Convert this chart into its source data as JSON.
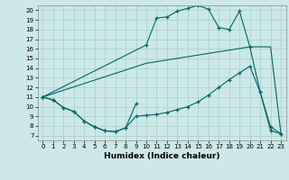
{
  "xlabel": "Humidex (Indice chaleur)",
  "xlim": [
    -0.5,
    23.5
  ],
  "ylim": [
    6.5,
    20.5
  ],
  "xticks": [
    0,
    1,
    2,
    3,
    4,
    5,
    6,
    7,
    8,
    9,
    10,
    11,
    12,
    13,
    14,
    15,
    16,
    17,
    18,
    19,
    20,
    21,
    22,
    23
  ],
  "yticks": [
    7,
    8,
    9,
    10,
    11,
    12,
    13,
    14,
    15,
    16,
    17,
    18,
    19,
    20
  ],
  "background_color": "#cce8e8",
  "grid_color": "#aacccc",
  "line_color": "#006666",
  "line1_x": [
    0,
    1,
    2,
    3,
    4,
    5,
    6,
    7,
    8,
    9
  ],
  "line1_y": [
    11,
    10.7,
    9.9,
    9.5,
    8.5,
    7.9,
    7.5,
    7.4,
    7.8,
    10.3
  ],
  "line2_x": [
    0,
    1,
    2,
    3,
    4,
    5,
    6,
    7,
    8,
    9,
    10,
    11,
    12,
    13,
    14,
    15,
    16,
    17,
    18,
    19,
    20,
    21,
    22,
    23
  ],
  "line2_y": [
    11,
    10.7,
    9.9,
    9.5,
    8.5,
    7.9,
    7.5,
    7.4,
    7.8,
    9.0,
    9.1,
    9.2,
    9.4,
    9.7,
    10.0,
    10.5,
    11.2,
    12.0,
    12.8,
    13.5,
    14.2,
    11.5,
    7.5,
    7.2
  ],
  "line3_x": [
    0,
    10,
    11,
    12,
    13,
    14,
    15,
    16,
    17,
    18,
    19,
    20,
    21,
    22,
    23
  ],
  "line3_y": [
    11,
    16.4,
    19.2,
    19.3,
    19.9,
    20.2,
    20.5,
    20.1,
    18.2,
    18.0,
    19.9,
    16.2,
    11.5,
    7.9,
    7.2
  ],
  "line4_x": [
    0,
    10,
    20,
    22,
    23
  ],
  "line4_y": [
    11,
    14.5,
    16.2,
    16.2,
    7.2
  ]
}
